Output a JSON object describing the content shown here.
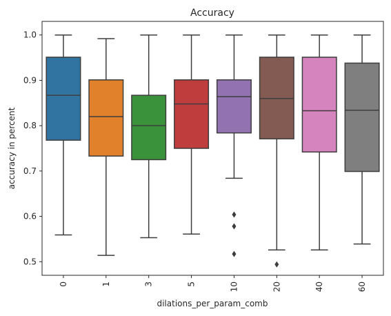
{
  "chart_data": {
    "type": "box",
    "title": "Accuracy",
    "xlabel": "dilations_per_param_comb",
    "ylabel": "accuracy in percent",
    "ylim": [
      0.47,
      1.03
    ],
    "yticks": [
      "0.5",
      "0.6",
      "0.7",
      "0.8",
      "0.9",
      "1.0"
    ],
    "grid": false,
    "categories": [
      "0",
      "1",
      "3",
      "5",
      "10",
      "20",
      "40",
      "60"
    ],
    "boxes": [
      {
        "category": "0",
        "color": "#3274a1",
        "whisker_low": 0.559,
        "q1": 0.768,
        "median": 0.867,
        "q3": 0.951,
        "whisker_high": 1.0,
        "outliers": []
      },
      {
        "category": "1",
        "color": "#e1812c",
        "whisker_low": 0.514,
        "q1": 0.733,
        "median": 0.82,
        "q3": 0.901,
        "whisker_high": 0.992,
        "outliers": []
      },
      {
        "category": "3",
        "color": "#3a923a",
        "whisker_low": 0.553,
        "q1": 0.725,
        "median": 0.8,
        "q3": 0.867,
        "whisker_high": 1.0,
        "outliers": []
      },
      {
        "category": "5",
        "color": "#c03d3e",
        "whisker_low": 0.561,
        "q1": 0.75,
        "median": 0.848,
        "q3": 0.901,
        "whisker_high": 1.0,
        "outliers": []
      },
      {
        "category": "10",
        "color": "#9372b2",
        "whisker_low": 0.684,
        "q1": 0.784,
        "median": 0.864,
        "q3": 0.901,
        "whisker_high": 1.0,
        "outliers": [
          0.604,
          0.578,
          0.517
        ]
      },
      {
        "category": "20",
        "color": "#845b53",
        "whisker_low": 0.526,
        "q1": 0.771,
        "median": 0.86,
        "q3": 0.951,
        "whisker_high": 1.0,
        "outliers": [
          0.494
        ]
      },
      {
        "category": "40",
        "color": "#d684bd",
        "whisker_low": 0.526,
        "q1": 0.742,
        "median": 0.833,
        "q3": 0.951,
        "whisker_high": 1.0,
        "outliers": []
      },
      {
        "category": "60",
        "color": "#7f7f7f",
        "whisker_low": 0.539,
        "q1": 0.699,
        "median": 0.834,
        "q3": 0.938,
        "whisker_high": 1.0,
        "outliers": []
      }
    ]
  }
}
